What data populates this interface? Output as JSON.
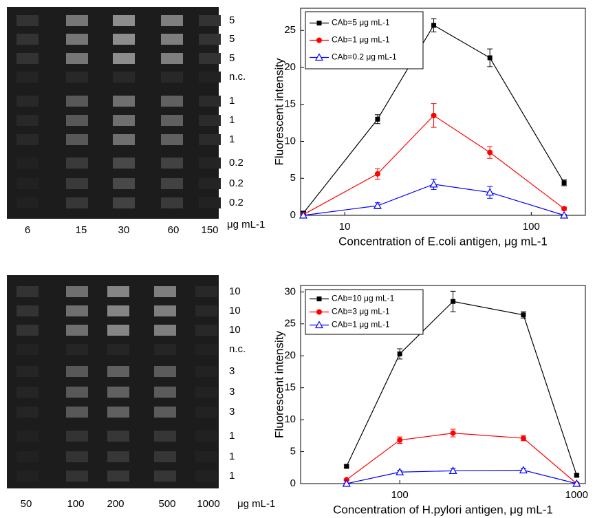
{
  "chart_data": [
    {
      "type": "line",
      "ylabel": "Fluorescent intensity",
      "xlabel": "Concentration of E.coli antigen, μg mL-1",
      "xscale": "log",
      "xlim": [
        5.8,
        195
      ],
      "xticks": [
        10,
        100
      ],
      "ylim": [
        0,
        28
      ],
      "yticks": [
        0,
        5,
        10,
        15,
        20,
        25
      ],
      "legend": "upper left",
      "x": [
        6,
        15,
        30,
        60,
        150
      ],
      "series": [
        {
          "name": "CAb=5 μg mL-1",
          "color": "#000000",
          "marker": "square",
          "values": [
            0.3,
            13,
            25.7,
            21.3,
            4.4
          ],
          "errors": [
            0.2,
            0.6,
            0.9,
            1.2,
            0.4
          ]
        },
        {
          "name": "CAb=1 μg mL-1",
          "color": "#ff0000",
          "marker": "circle",
          "values": [
            0.1,
            5.6,
            13.5,
            8.5,
            0.9
          ],
          "errors": [
            0.1,
            0.7,
            1.6,
            0.8,
            0.2
          ]
        },
        {
          "name": "CAb=0.2 μg mL-1",
          "color": "#0000ff",
          "marker": "triangle",
          "values": [
            0,
            1.3,
            4.2,
            3.1,
            0
          ],
          "errors": [
            0.1,
            0.4,
            0.7,
            0.8,
            0.1
          ]
        }
      ]
    },
    {
      "type": "line",
      "ylabel": "Fluorescent intensity",
      "xlabel": "Concentration of H.pylori antigen, μg mL-1",
      "xscale": "log",
      "xlim": [
        27.5,
        1120
      ],
      "xticks": [
        100,
        1000
      ],
      "ylim": [
        0,
        31
      ],
      "yticks": [
        0,
        5,
        10,
        15,
        20,
        25,
        30
      ],
      "legend": "upper left",
      "x": [
        50,
        100,
        200,
        500,
        1000
      ],
      "series": [
        {
          "name": "CAb=10 μg mL-1",
          "color": "#000000",
          "marker": "square",
          "values": [
            2.7,
            20.3,
            28.5,
            26.4,
            1.3
          ],
          "errors": [
            0.2,
            0.8,
            1.6,
            0.5,
            0.2
          ]
        },
        {
          "name": "CAb=3 μg mL-1",
          "color": "#ff0000",
          "marker": "circle",
          "values": [
            0.6,
            6.8,
            7.9,
            7.1,
            0
          ],
          "errors": [
            0.1,
            0.5,
            0.6,
            0.4,
            0.1
          ]
        },
        {
          "name": "CAb=1 μg mL-1",
          "color": "#0000ff",
          "marker": "triangle",
          "values": [
            0,
            1.8,
            2.0,
            2.1,
            0
          ],
          "errors": [
            0.1,
            0.3,
            0.4,
            0.3,
            0.1
          ]
        }
      ]
    }
  ],
  "arrays": [
    {
      "row_labels": [
        "5",
        "5",
        "5",
        "n.c.",
        "1",
        "1",
        "1",
        "0.2",
        "0.2",
        "0.2"
      ],
      "column_labels": [
        "6",
        "15",
        "30",
        "60",
        "150"
      ],
      "unit": "μg mL-1"
    },
    {
      "row_labels": [
        "10",
        "10",
        "10",
        "n.c.",
        "3",
        "3",
        "3",
        "1",
        "1",
        "1"
      ],
      "column_labels": [
        "50",
        "100",
        "200",
        "500",
        "1000"
      ],
      "unit": "μg mL-1"
    }
  ]
}
